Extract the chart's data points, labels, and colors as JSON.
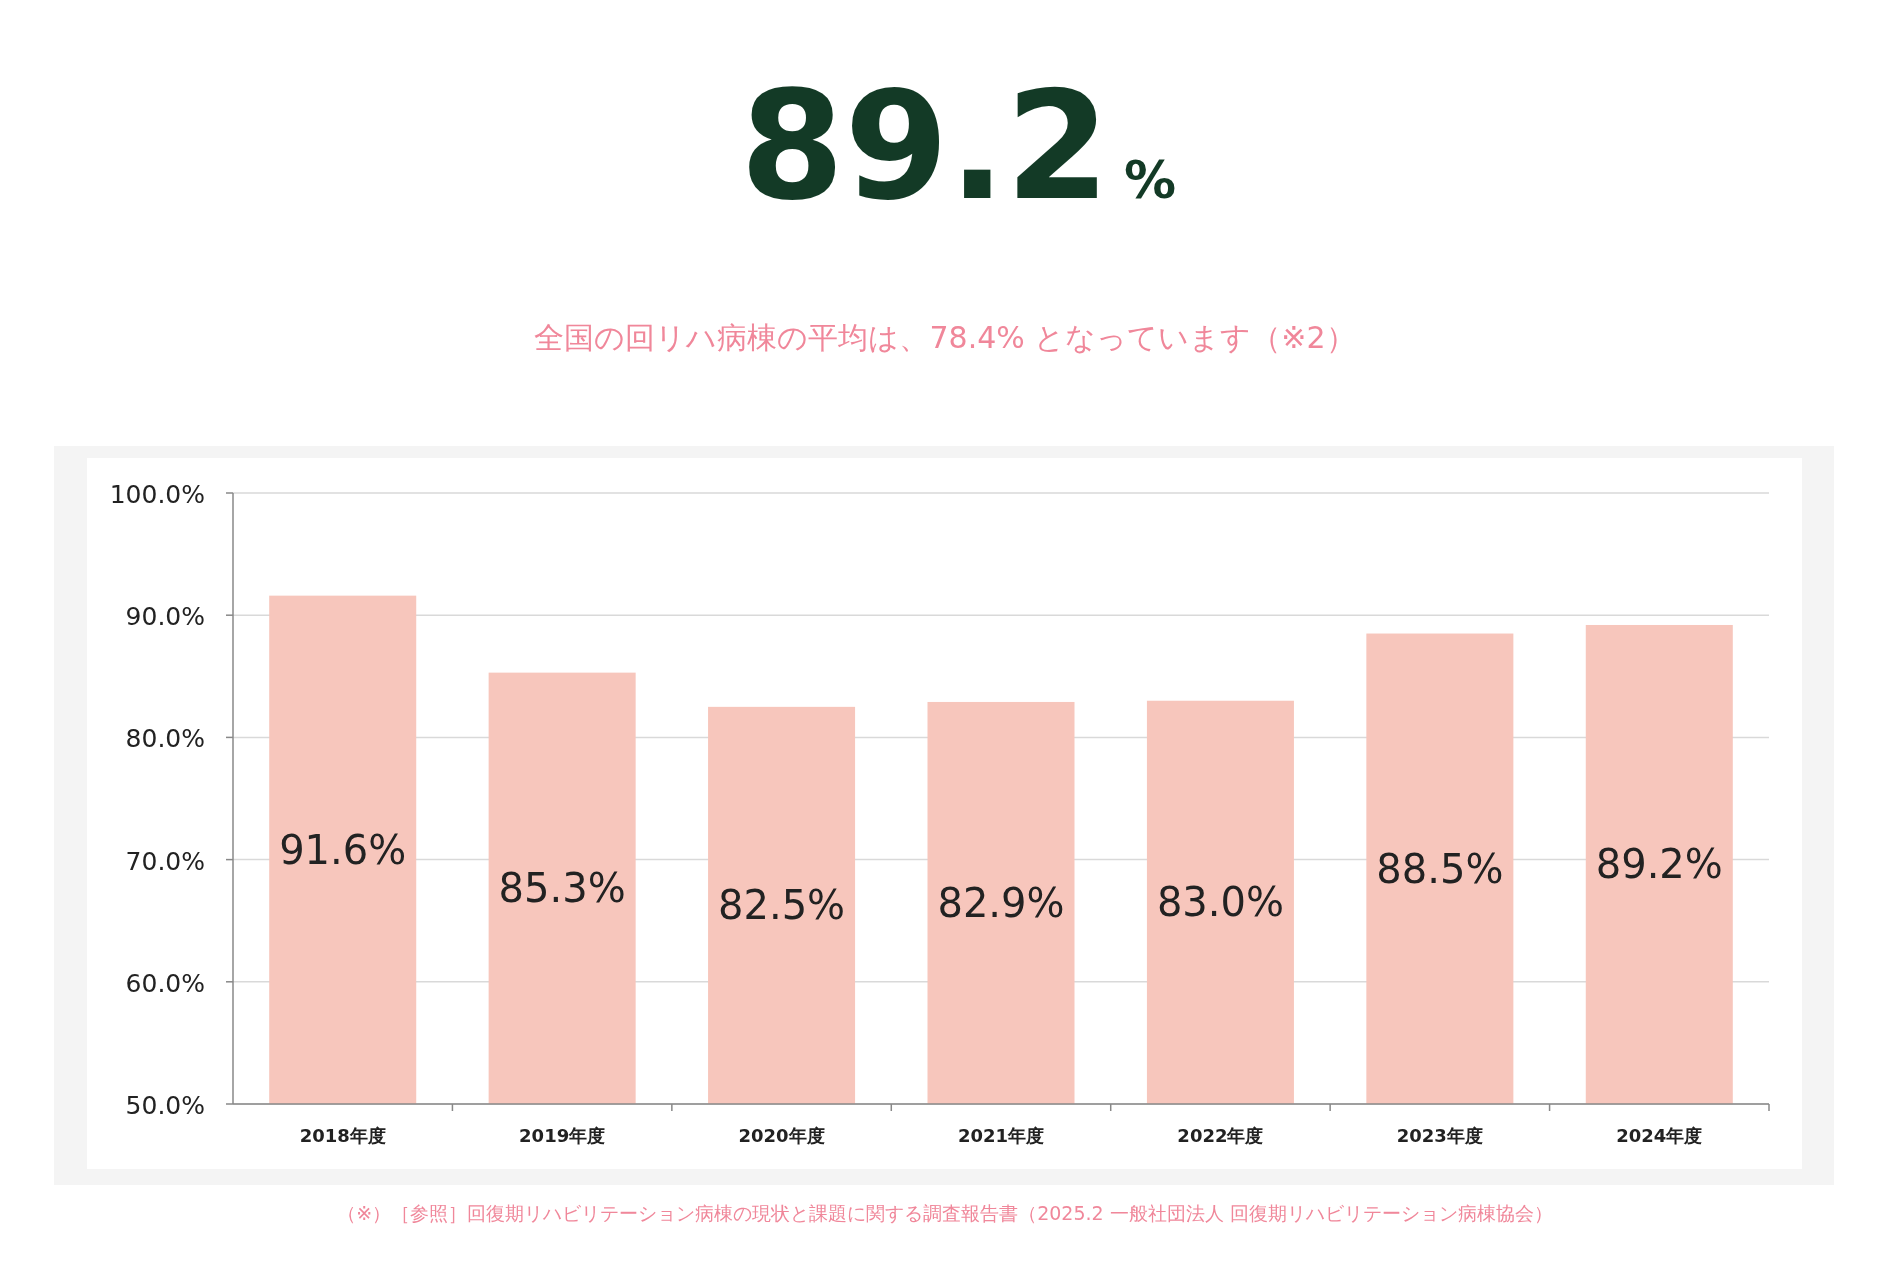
{
  "chart_data": {
    "type": "bar",
    "title": "89.2%",
    "subtitle": "全国の回リハ病棟の平均は、78.4% となっています（※2）",
    "annotations": [
      "（※）［参照］回復期リハビリテーション病棟の現状と課題に関する調査報告書（2025.2 一般社団法人 回復期リハビリテーション病棟協会）"
    ],
    "categories": [
      "2018年度",
      "2019年度",
      "2020年度",
      "2021年度",
      "2022年度",
      "2023年度",
      "2024年度"
    ],
    "values": [
      91.6,
      85.3,
      82.5,
      82.9,
      83.0,
      88.5,
      89.2
    ],
    "color": "#f7c6bc",
    "value_labels": [
      "91.6%",
      "85.3%",
      "82.5%",
      "82.9%",
      "83.0%",
      "88.5%",
      "89.2%"
    ],
    "ylim": [
      50,
      100
    ],
    "yticks": [
      {
        "value": 50,
        "label": "50.0%"
      },
      {
        "value": 60,
        "label": "60.0%"
      },
      {
        "value": 70,
        "label": "70.0%"
      },
      {
        "value": 80,
        "label": "80.0%"
      },
      {
        "value": 90,
        "label": "90.0%"
      },
      {
        "value": 100,
        "label": "100.0%"
      }
    ],
    "grid": "y"
  }
}
